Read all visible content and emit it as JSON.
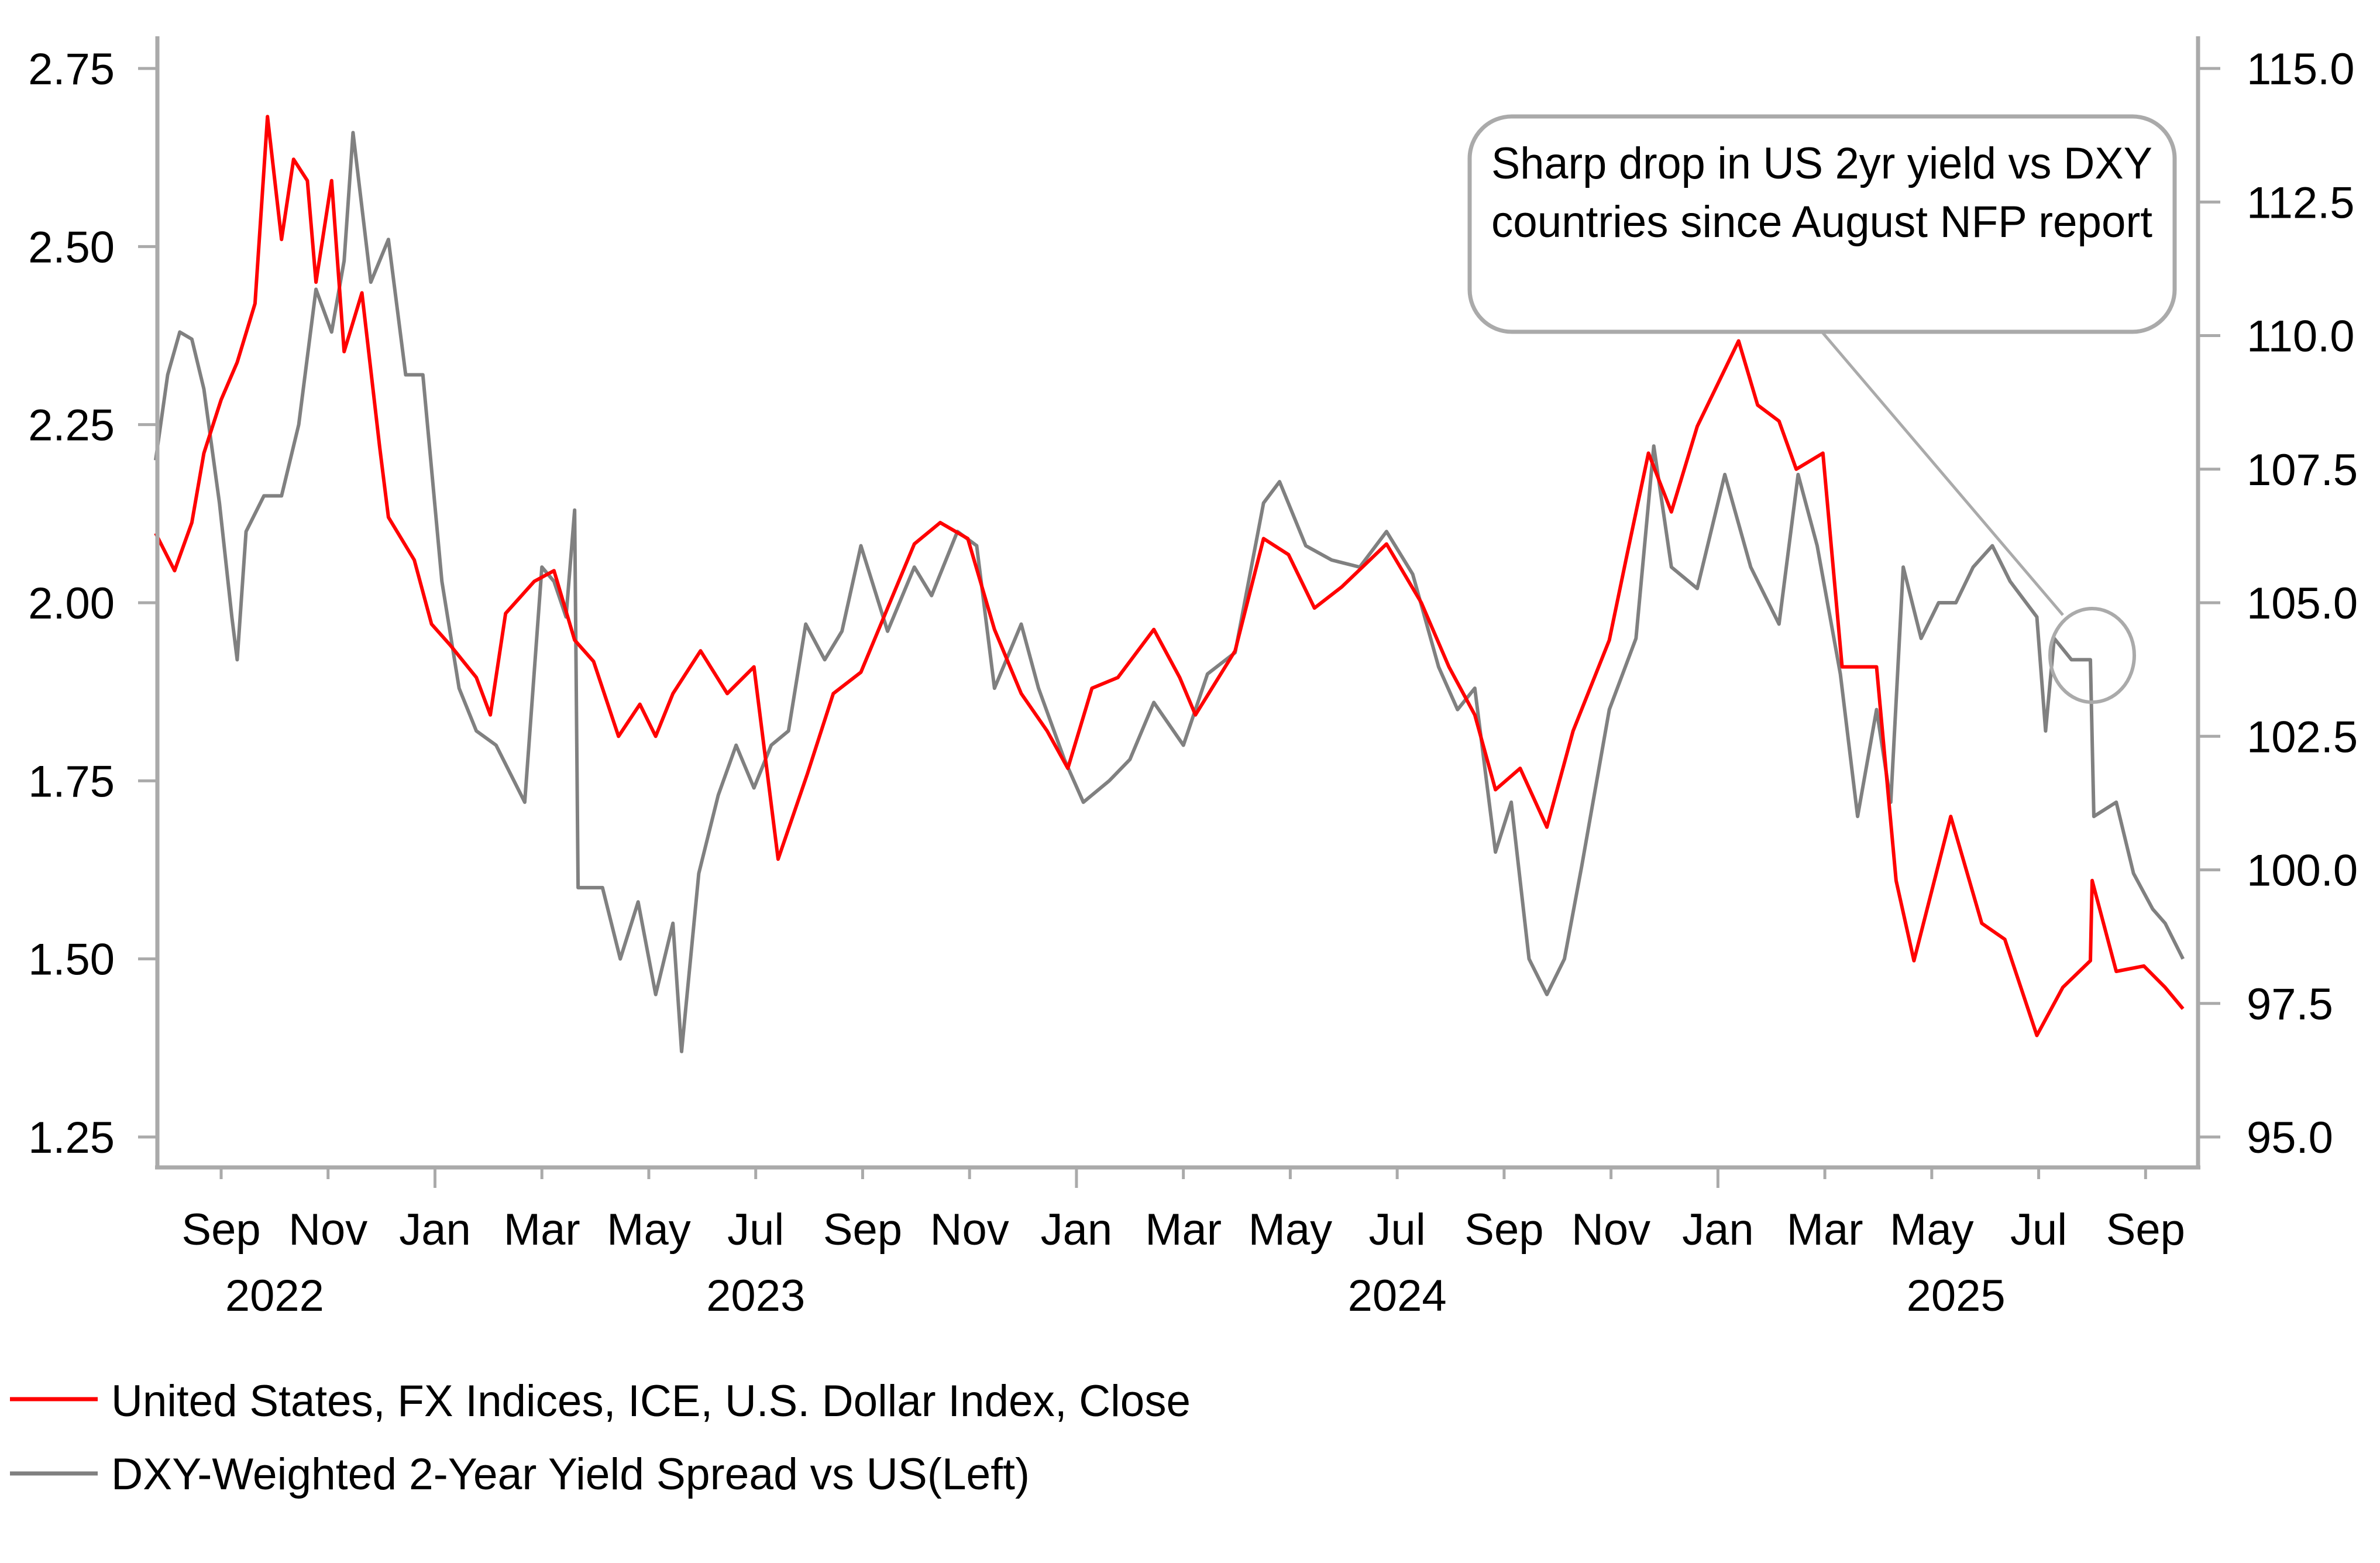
{
  "chart_data": {
    "type": "line",
    "title": "",
    "xlabel": "",
    "ylabel_left": "",
    "ylabel_right": "",
    "grid": false,
    "legend_position": "bottom-left",
    "x_range": [
      "2022-07-25",
      "2025-09-30"
    ],
    "y_left": {
      "ticks": [
        "1.25",
        "1.50",
        "1.75",
        "2.00",
        "2.25",
        "2.50",
        "2.75"
      ],
      "range": [
        1.25,
        2.75
      ]
    },
    "y_right": {
      "ticks": [
        "95.0",
        "97.5",
        "100.0",
        "102.5",
        "105.0",
        "107.5",
        "110.0",
        "112.5",
        "115.0"
      ],
      "range": [
        95.0,
        115.0
      ]
    },
    "x_ticks": [
      {
        "date": "2022-09-01",
        "label": "Sep",
        "major": false
      },
      {
        "date": "2022-11-01",
        "label": "Nov",
        "major": false
      },
      {
        "date": "2023-01-01",
        "label": "Jan",
        "major": true
      },
      {
        "date": "2023-03-01",
        "label": "Mar",
        "major": false
      },
      {
        "date": "2023-05-01",
        "label": "May",
        "major": false
      },
      {
        "date": "2023-07-01",
        "label": "Jul",
        "major": false
      },
      {
        "date": "2023-09-01",
        "label": "Sep",
        "major": false
      },
      {
        "date": "2023-11-01",
        "label": "Nov",
        "major": false
      },
      {
        "date": "2024-01-01",
        "label": "Jan",
        "major": true
      },
      {
        "date": "2024-03-01",
        "label": "Mar",
        "major": false
      },
      {
        "date": "2024-05-01",
        "label": "May",
        "major": false
      },
      {
        "date": "2024-07-01",
        "label": "Jul",
        "major": false
      },
      {
        "date": "2024-09-01",
        "label": "Sep",
        "major": false
      },
      {
        "date": "2024-11-01",
        "label": "Nov",
        "major": false
      },
      {
        "date": "2025-01-01",
        "label": "Jan",
        "major": true
      },
      {
        "date": "2025-03-01",
        "label": "Mar",
        "major": false
      },
      {
        "date": "2025-05-01",
        "label": "May",
        "major": false
      },
      {
        "date": "2025-07-01",
        "label": "Jul",
        "major": false
      },
      {
        "date": "2025-09-01",
        "label": "Sep",
        "major": false
      }
    ],
    "year_labels": [
      {
        "date": "2022-10-01",
        "label": "2022"
      },
      {
        "date": "2023-07-01",
        "label": "2023"
      },
      {
        "date": "2024-07-01",
        "label": "2024"
      },
      {
        "date": "2025-05-15",
        "label": "2025"
      }
    ],
    "series": [
      {
        "name": "United States, FX Indices, ICE, U.S. Dollar Index, Close",
        "axis": "right",
        "color": "#ff0000",
        "points": [
          [
            "2022-07-25",
            106.3
          ],
          [
            "2022-08-05",
            105.6
          ],
          [
            "2022-08-15",
            106.5
          ],
          [
            "2022-08-22",
            107.8
          ],
          [
            "2022-09-01",
            108.8
          ],
          [
            "2022-09-10",
            109.5
          ],
          [
            "2022-09-20",
            110.6
          ],
          [
            "2022-09-27",
            114.1
          ],
          [
            "2022-10-05",
            111.8
          ],
          [
            "2022-10-12",
            113.3
          ],
          [
            "2022-10-20",
            112.9
          ],
          [
            "2022-10-25",
            111.0
          ],
          [
            "2022-11-03",
            112.9
          ],
          [
            "2022-11-10",
            109.7
          ],
          [
            "2022-11-20",
            110.8
          ],
          [
            "2022-11-30",
            107.9
          ],
          [
            "2022-12-05",
            106.6
          ],
          [
            "2022-12-20",
            105.8
          ],
          [
            "2022-12-30",
            104.6
          ],
          [
            "2023-01-10",
            104.2
          ],
          [
            "2023-01-25",
            103.6
          ],
          [
            "2023-02-02",
            102.9
          ],
          [
            "2023-02-10",
            104.8
          ],
          [
            "2023-02-25",
            105.4
          ],
          [
            "2023-03-08",
            105.6
          ],
          [
            "2023-03-20",
            104.3
          ],
          [
            "2023-03-31",
            103.9
          ],
          [
            "2023-04-14",
            102.5
          ],
          [
            "2023-04-26",
            103.1
          ],
          [
            "2023-05-05",
            102.5
          ],
          [
            "2023-05-15",
            103.3
          ],
          [
            "2023-05-31",
            104.1
          ],
          [
            "2023-06-15",
            103.3
          ],
          [
            "2023-06-30",
            103.8
          ],
          [
            "2023-07-14",
            100.2
          ],
          [
            "2023-07-31",
            101.8
          ],
          [
            "2023-08-15",
            103.3
          ],
          [
            "2023-08-31",
            103.7
          ],
          [
            "2023-09-15",
            104.9
          ],
          [
            "2023-09-30",
            106.1
          ],
          [
            "2023-10-15",
            106.5
          ],
          [
            "2023-10-31",
            106.2
          ],
          [
            "2023-11-15",
            104.5
          ],
          [
            "2023-11-30",
            103.3
          ],
          [
            "2023-12-15",
            102.6
          ],
          [
            "2023-12-27",
            101.9
          ],
          [
            "2024-01-10",
            103.4
          ],
          [
            "2024-01-25",
            103.6
          ],
          [
            "2024-02-14",
            104.5
          ],
          [
            "2024-02-28",
            103.6
          ],
          [
            "2024-03-08",
            102.9
          ],
          [
            "2024-03-31",
            104.1
          ],
          [
            "2024-04-16",
            106.2
          ],
          [
            "2024-04-30",
            105.9
          ],
          [
            "2024-05-15",
            104.9
          ],
          [
            "2024-05-31",
            105.3
          ],
          [
            "2024-06-25",
            106.1
          ],
          [
            "2024-07-15",
            105.0
          ],
          [
            "2024-07-31",
            103.8
          ],
          [
            "2024-08-15",
            102.9
          ],
          [
            "2024-08-27",
            101.5
          ],
          [
            "2024-09-10",
            101.9
          ],
          [
            "2024-09-25",
            100.8
          ],
          [
            "2024-10-10",
            102.6
          ],
          [
            "2024-10-31",
            104.3
          ],
          [
            "2024-11-10",
            105.9
          ],
          [
            "2024-11-22",
            107.8
          ],
          [
            "2024-12-05",
            106.7
          ],
          [
            "2024-12-20",
            108.3
          ],
          [
            "2025-01-13",
            109.9
          ],
          [
            "2025-01-24",
            108.7
          ],
          [
            "2025-02-05",
            108.4
          ],
          [
            "2025-02-14",
            107.5
          ],
          [
            "2025-02-28",
            107.8
          ],
          [
            "2025-03-11",
            103.8
          ],
          [
            "2025-03-31",
            103.8
          ],
          [
            "2025-04-11",
            99.8
          ],
          [
            "2025-04-21",
            98.3
          ],
          [
            "2025-05-12",
            101.0
          ],
          [
            "2025-05-30",
            99.0
          ],
          [
            "2025-06-12",
            98.7
          ],
          [
            "2025-06-30",
            96.9
          ],
          [
            "2025-07-15",
            97.8
          ],
          [
            "2025-07-31",
            98.3
          ],
          [
            "2025-08-01",
            99.8
          ],
          [
            "2025-08-15",
            98.1
          ],
          [
            "2025-08-31",
            98.2
          ],
          [
            "2025-09-12",
            97.8
          ],
          [
            "2025-09-22",
            97.4
          ]
        ]
      },
      {
        "name": "DXY-Weighted 2-Year Yield Spread vs US(Left)",
        "axis": "left",
        "color": "#808080",
        "points": [
          [
            "2022-07-25",
            2.2
          ],
          [
            "2022-08-01",
            2.32
          ],
          [
            "2022-08-08",
            2.38
          ],
          [
            "2022-08-15",
            2.37
          ],
          [
            "2022-08-22",
            2.3
          ],
          [
            "2022-08-31",
            2.14
          ],
          [
            "2022-09-07",
            1.98
          ],
          [
            "2022-09-10",
            1.92
          ],
          [
            "2022-09-15",
            2.1
          ],
          [
            "2022-09-25",
            2.15
          ],
          [
            "2022-10-05",
            2.15
          ],
          [
            "2022-10-15",
            2.25
          ],
          [
            "2022-10-25",
            2.44
          ],
          [
            "2022-11-03",
            2.38
          ],
          [
            "2022-11-10",
            2.48
          ],
          [
            "2022-11-15",
            2.66
          ],
          [
            "2022-11-25",
            2.45
          ],
          [
            "2022-12-05",
            2.51
          ],
          [
            "2022-12-15",
            2.32
          ],
          [
            "2022-12-25",
            2.32
          ],
          [
            "2023-01-05",
            2.03
          ],
          [
            "2023-01-15",
            1.88
          ],
          [
            "2023-01-25",
            1.82
          ],
          [
            "2023-02-05",
            1.8
          ],
          [
            "2023-02-20",
            1.72
          ],
          [
            "2023-03-01",
            2.05
          ],
          [
            "2023-03-08",
            2.03
          ],
          [
            "2023-03-15",
            1.98
          ],
          [
            "2023-03-20",
            2.13
          ],
          [
            "2023-03-22",
            1.6
          ],
          [
            "2023-04-05",
            1.6
          ],
          [
            "2023-04-15",
            1.5
          ],
          [
            "2023-04-25",
            1.58
          ],
          [
            "2023-05-05",
            1.45
          ],
          [
            "2023-05-15",
            1.55
          ],
          [
            "2023-05-20",
            1.37
          ],
          [
            "2023-05-30",
            1.62
          ],
          [
            "2023-06-10",
            1.73
          ],
          [
            "2023-06-20",
            1.8
          ],
          [
            "2023-06-30",
            1.74
          ],
          [
            "2023-07-10",
            1.8
          ],
          [
            "2023-07-20",
            1.82
          ],
          [
            "2023-07-30",
            1.97
          ],
          [
            "2023-08-10",
            1.92
          ],
          [
            "2023-08-20",
            1.96
          ],
          [
            "2023-08-31",
            2.08
          ],
          [
            "2023-09-15",
            1.96
          ],
          [
            "2023-09-30",
            2.05
          ],
          [
            "2023-10-10",
            2.01
          ],
          [
            "2023-10-25",
            2.1
          ],
          [
            "2023-11-05",
            2.08
          ],
          [
            "2023-11-15",
            1.88
          ],
          [
            "2023-11-30",
            1.97
          ],
          [
            "2023-12-10",
            1.88
          ],
          [
            "2023-12-25",
            1.78
          ],
          [
            "2024-01-05",
            1.72
          ],
          [
            "2024-01-20",
            1.75
          ],
          [
            "2024-02-01",
            1.78
          ],
          [
            "2024-02-14",
            1.86
          ],
          [
            "2024-03-01",
            1.8
          ],
          [
            "2024-03-15",
            1.9
          ],
          [
            "2024-03-31",
            1.93
          ],
          [
            "2024-04-16",
            2.14
          ],
          [
            "2024-04-25",
            2.17
          ],
          [
            "2024-05-10",
            2.08
          ],
          [
            "2024-05-25",
            2.06
          ],
          [
            "2024-06-10",
            2.05
          ],
          [
            "2024-06-25",
            2.1
          ],
          [
            "2024-07-10",
            2.04
          ],
          [
            "2024-07-25",
            1.91
          ],
          [
            "2024-08-05",
            1.85
          ],
          [
            "2024-08-15",
            1.88
          ],
          [
            "2024-08-27",
            1.65
          ],
          [
            "2024-09-05",
            1.72
          ],
          [
            "2024-09-15",
            1.5
          ],
          [
            "2024-09-25",
            1.45
          ],
          [
            "2024-10-05",
            1.5
          ],
          [
            "2024-10-15",
            1.63
          ],
          [
            "2024-10-31",
            1.85
          ],
          [
            "2024-11-15",
            1.95
          ],
          [
            "2024-11-25",
            2.22
          ],
          [
            "2024-12-05",
            2.05
          ],
          [
            "2024-12-20",
            2.02
          ],
          [
            "2025-01-05",
            2.18
          ],
          [
            "2025-01-20",
            2.05
          ],
          [
            "2025-02-05",
            1.97
          ],
          [
            "2025-02-15",
            2.18
          ],
          [
            "2025-02-25",
            2.08
          ],
          [
            "2025-03-10",
            1.9
          ],
          [
            "2025-03-20",
            1.7
          ],
          [
            "2025-03-31",
            1.85
          ],
          [
            "2025-04-08",
            1.72
          ],
          [
            "2025-04-15",
            2.05
          ],
          [
            "2025-04-25",
            1.95
          ],
          [
            "2025-05-05",
            2.0
          ],
          [
            "2025-05-15",
            2.0
          ],
          [
            "2025-05-25",
            2.05
          ],
          [
            "2025-06-05",
            2.08
          ],
          [
            "2025-06-15",
            2.03
          ],
          [
            "2025-06-30",
            1.98
          ],
          [
            "2025-07-05",
            1.82
          ],
          [
            "2025-07-10",
            1.95
          ],
          [
            "2025-07-20",
            1.92
          ],
          [
            "2025-07-31",
            1.92
          ],
          [
            "2025-08-02",
            1.7
          ],
          [
            "2025-08-15",
            1.72
          ],
          [
            "2025-08-25",
            1.62
          ],
          [
            "2025-09-05",
            1.57
          ],
          [
            "2025-09-12",
            1.55
          ],
          [
            "2025-09-22",
            1.5
          ]
        ]
      }
    ],
    "annotations": [
      {
        "lines": [
          "Sharp drop in US 2yr yield vs DXY",
          "countries since August NFP report"
        ],
        "target_date": "2025-08-01",
        "target_value_left": 1.93
      }
    ]
  },
  "legend": [
    {
      "label": "United States, FX Indices, ICE, U.S. Dollar Index, Close",
      "color": "#ff0000"
    },
    {
      "label": "DXY-Weighted 2-Year Yield Spread vs US(Left)",
      "color": "#808080"
    }
  ]
}
